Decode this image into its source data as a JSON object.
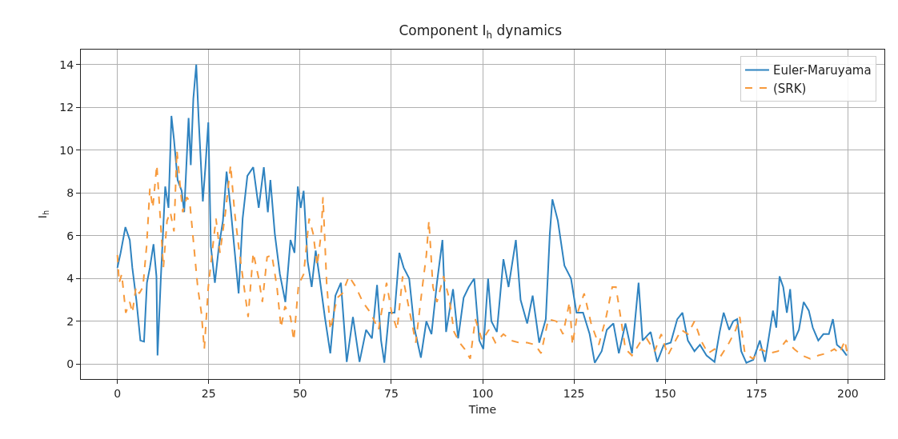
{
  "chart_data": {
    "type": "line",
    "title": "Component I$_{h}$ dynamics",
    "xlabel": "Time",
    "ylabel": "I$_{h}$",
    "xlim": [
      -10,
      210
    ],
    "xticks": [
      0,
      25,
      50,
      75,
      100,
      125,
      150,
      175,
      200
    ],
    "ylim": [
      -0.7,
      14.7
    ],
    "yticks": [
      0,
      2,
      4,
      6,
      8,
      10,
      12,
      14
    ],
    "grid": true,
    "legend": "top right",
    "marker": "none",
    "series": [
      {
        "name": "Euler-Maruyama",
        "color": "#2f83c0",
        "line_style": "solid",
        "x": [
          0,
          0.9,
          2.2,
          3.4,
          4.1,
          5.2,
          6.3,
          7.3,
          8.1,
          8.9,
          9.9,
          10.7,
          11.0,
          11.9,
          13.1,
          14.0,
          14.8,
          15.5,
          16.5,
          17.6,
          18.3,
          19.5,
          20.1,
          20.8,
          21.6,
          22.3,
          23.4,
          24.1,
          24.9,
          25.6,
          26.7,
          27.8,
          28.9,
          29.9,
          31.0,
          32.1,
          33.2,
          34.3,
          35.6,
          37.2,
          38.7,
          40.1,
          41.2,
          41.9,
          43.1,
          44.5,
          46.0,
          47.4,
          48.5,
          49.4,
          50.2,
          51.0,
          52.1,
          53.2,
          54.3,
          55.4,
          56.8,
          58.3,
          59.7,
          61.2,
          62.8,
          64.5,
          66.3,
          68.1,
          69.7,
          71.1,
          72.2,
          73.1,
          74.4,
          75.9,
          77.2,
          78.4,
          79.9,
          81.3,
          83.1,
          84.6,
          86.0,
          87.5,
          89.0,
          90.0,
          91.9,
          93.3,
          94.8,
          96.2,
          97.7,
          99.1,
          100.2,
          101.5,
          102.4,
          103.9,
          105.7,
          107.1,
          109.1,
          110.4,
          112.2,
          113.7,
          115.5,
          117.3,
          118.4,
          119.1,
          120.6,
          122.4,
          124.2,
          125.7,
          127.5,
          129.3,
          130.7,
          132.6,
          134.0,
          135.8,
          137.3,
          139.1,
          140.9,
          142.7,
          143.8,
          146.0,
          147.8,
          149.6,
          151.5,
          153.3,
          154.7,
          156.2,
          158.0,
          159.5,
          161.3,
          163.5,
          164.9,
          166.0,
          167.5,
          168.6,
          169.7,
          170.8,
          172.2,
          174.1,
          175.9,
          177.3,
          179.5,
          180.4,
          181.3,
          182.3,
          183.3,
          184.2,
          185.3,
          186.6,
          187.9,
          189.3,
          190.4,
          191.9,
          193.3,
          194.8,
          195.9,
          197.0,
          198.4,
          199.7
        ],
        "values": [
          4.5,
          5.2,
          6.4,
          5.8,
          4.5,
          3.0,
          1.1,
          1.05,
          3.8,
          4.5,
          5.6,
          4.1,
          0.4,
          4.0,
          8.3,
          7.3,
          11.6,
          10.5,
          8.6,
          8.1,
          7.1,
          11.5,
          9.3,
          12.4,
          14.0,
          11.3,
          7.6,
          9.2,
          11.3,
          5.5,
          3.8,
          5.5,
          6.7,
          9.0,
          7.3,
          5.3,
          3.3,
          6.8,
          8.8,
          9.2,
          7.3,
          9.2,
          7.1,
          8.6,
          6.1,
          4.2,
          2.9,
          5.8,
          5.2,
          8.3,
          7.3,
          8.1,
          4.8,
          3.6,
          5.3,
          4.0,
          2.2,
          0.5,
          3.2,
          3.8,
          0.1,
          2.2,
          0.1,
          1.6,
          1.2,
          3.7,
          1.1,
          0.06,
          2.4,
          2.4,
          5.2,
          4.5,
          4.0,
          1.7,
          0.3,
          2.0,
          1.4,
          3.8,
          5.8,
          1.5,
          3.5,
          1.2,
          3.1,
          3.6,
          4.0,
          1.1,
          0.7,
          4.0,
          2.0,
          1.5,
          4.9,
          3.6,
          5.8,
          3.0,
          1.9,
          3.2,
          1.0,
          2.1,
          6.1,
          7.7,
          6.7,
          4.6,
          4.0,
          2.4,
          2.4,
          1.4,
          0.06,
          0.6,
          1.6,
          1.9,
          0.5,
          1.9,
          0.5,
          3.8,
          1.1,
          1.5,
          0.1,
          0.9,
          1.0,
          2.1,
          2.4,
          1.1,
          0.6,
          0.9,
          0.4,
          0.1,
          1.5,
          2.4,
          1.6,
          2.0,
          2.1,
          0.6,
          0.06,
          0.2,
          1.1,
          0.1,
          2.5,
          1.7,
          4.1,
          3.6,
          2.4,
          3.5,
          1.1,
          1.6,
          2.9,
          2.5,
          1.7,
          1.1,
          1.4,
          1.4,
          2.1,
          0.9,
          0.7,
          0.4
        ]
      },
      {
        "name": "(SRK)",
        "color": "#f79a3c",
        "line_style": "dashed",
        "x": [
          0,
          0.5,
          1.2,
          2.3,
          3.4,
          4.1,
          5.1,
          6.0,
          7.0,
          8.0,
          8.9,
          9.7,
          10.8,
          11.8,
          12.6,
          13.6,
          14.5,
          15.5,
          16.3,
          17.2,
          17.9,
          19.0,
          19.8,
          20.9,
          22.0,
          23.0,
          23.8,
          24.9,
          26.0,
          27.0,
          28.1,
          29.6,
          31.0,
          32.1,
          33.2,
          34.3,
          35.8,
          37.2,
          38.7,
          39.7,
          41.0,
          42.3,
          43.7,
          44.8,
          45.9,
          47.4,
          48.3,
          49.6,
          51.0,
          52.5,
          53.6,
          54.7,
          55.8,
          56.3,
          57.3,
          58.3,
          60.2,
          61.6,
          63.4,
          65.3,
          67.2,
          69.3,
          71.5,
          73.7,
          75.1,
          76.6,
          78.1,
          79.5,
          81.7,
          83.5,
          84.6,
          85.3,
          86.4,
          87.5,
          89.3,
          90.8,
          92.2,
          93.7,
          95.1,
          96.6,
          98.0,
          99.9,
          101.7,
          103.5,
          105.7,
          107.8,
          110.0,
          112.2,
          114.4,
          116.0,
          118.0,
          120.2,
          122.0,
          123.8,
          124.6,
          126.0,
          127.8,
          129.7,
          131.8,
          133.7,
          135.5,
          136.5,
          137.6,
          139.1,
          140.9,
          143.1,
          144.9,
          147.1,
          148.9,
          150.7,
          152.5,
          154.4,
          156.2,
          158.0,
          159.8,
          161.7,
          163.5,
          165.3,
          167.5,
          169.3,
          170.4,
          171.8,
          174.0,
          176.2,
          178.4,
          180.9,
          183.1,
          185.3,
          187.5,
          189.7,
          191.9,
          194.1,
          196.3,
          197.7,
          199.2,
          199.7
        ],
        "values": [
          5.1,
          3.8,
          4.2,
          2.4,
          2.9,
          2.4,
          3.6,
          3.3,
          3.6,
          5.5,
          8.2,
          7.3,
          9.3,
          6.7,
          4.5,
          6.7,
          7.1,
          6.2,
          10.0,
          8.3,
          7.1,
          7.8,
          7.6,
          5.6,
          3.6,
          2.4,
          0.7,
          3.6,
          5.3,
          6.8,
          5.2,
          7.1,
          9.3,
          7.1,
          5.5,
          4.1,
          2.2,
          5.2,
          4.0,
          2.9,
          5.0,
          5.1,
          3.6,
          1.7,
          2.7,
          2.2,
          1.1,
          3.7,
          4.2,
          6.8,
          6.1,
          4.6,
          6.1,
          7.8,
          3.8,
          1.6,
          3.1,
          3.3,
          4.1,
          3.6,
          2.9,
          2.4,
          1.6,
          3.8,
          2.4,
          1.6,
          4.1,
          2.9,
          1.0,
          3.6,
          5.1,
          6.7,
          3.6,
          2.9,
          4.1,
          3.1,
          1.5,
          1.0,
          0.7,
          0.25,
          2.1,
          1.1,
          1.6,
          1.0,
          1.4,
          1.1,
          1.0,
          1.0,
          0.9,
          0.5,
          2.1,
          2.0,
          1.4,
          2.9,
          0.9,
          2.4,
          3.3,
          1.9,
          0.9,
          2.1,
          3.6,
          3.6,
          2.4,
          0.7,
          0.4,
          1.0,
          1.2,
          0.6,
          1.4,
          0.4,
          1.0,
          1.6,
          1.4,
          2.0,
          1.1,
          0.5,
          0.7,
          0.4,
          1.0,
          1.6,
          2.2,
          0.5,
          0.25,
          0.7,
          0.5,
          0.6,
          1.1,
          0.7,
          0.4,
          0.25,
          0.4,
          0.5,
          0.7,
          0.5,
          1.1,
          0.6
        ]
      }
    ]
  }
}
